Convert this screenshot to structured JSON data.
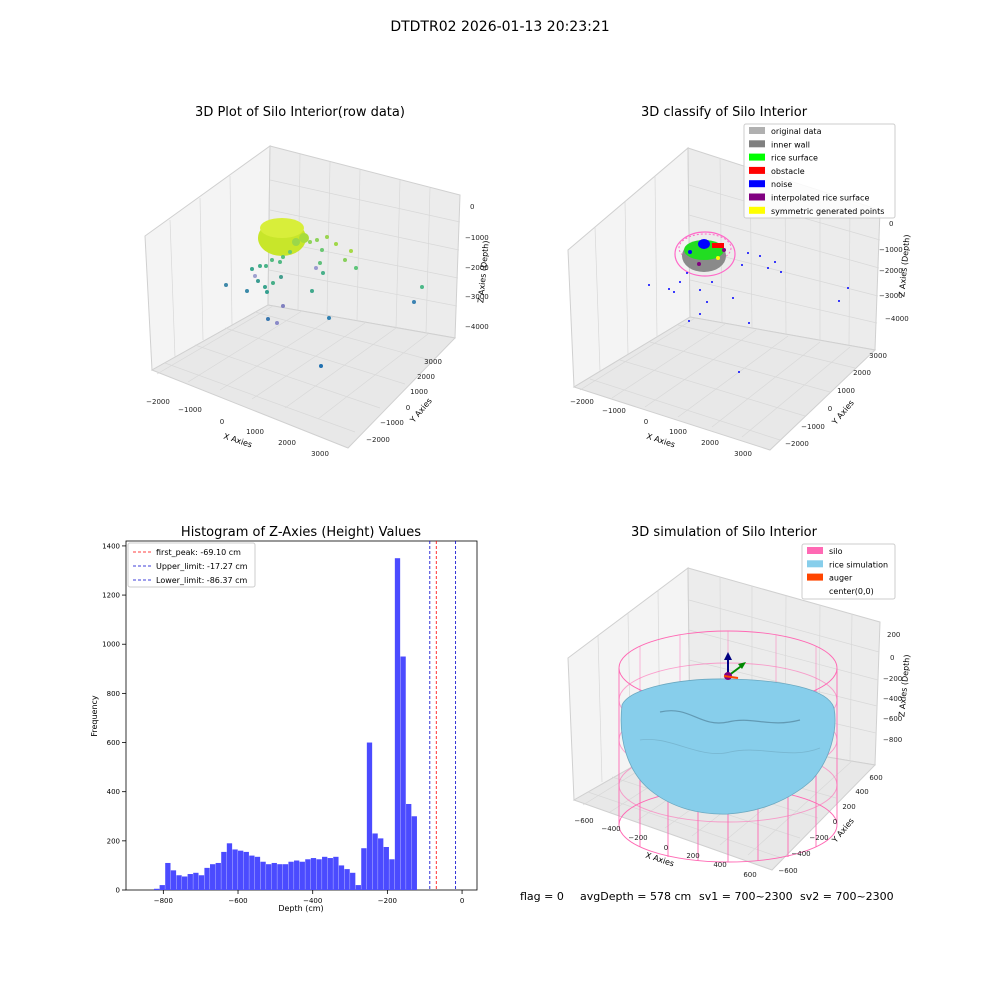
{
  "suptitle": "DTDTR02 2026-01-13 20:23:21",
  "status_line": {
    "flag": "flag = 0",
    "avg_depth": "avgDepth = 578 cm",
    "sv1": "sv1 = 700~2300",
    "sv2": "sv2 = 700~2300"
  },
  "colors": {
    "hist_bar": "#4b4bff",
    "first_peak_line": "#ff0000",
    "limit_lines": "#0000cc",
    "silo_wire": "#ff69b4",
    "rice_sim": "#87ceeb",
    "auger": "#ff4500",
    "pane": "#f2f2f2"
  },
  "chart_data": [
    {
      "type": "scatter3d",
      "title": "3D Plot of Silo Interior(row data)",
      "xlabel": "X Axies",
      "ylabel": "Y Axies",
      "zlabel": "Z Axies (Depth)",
      "x_ticks": [
        "−2000",
        "−1000",
        "0",
        "1000",
        "2000",
        "3000"
      ],
      "y_ticks": [
        "−2000",
        "−1000",
        "0",
        "1000",
        "2000",
        "3000"
      ],
      "z_ticks": [
        "0",
        "−1000",
        "−2000",
        "−3000",
        "−4000"
      ],
      "grid": true
    },
    {
      "type": "scatter3d",
      "title": "3D classify of Silo Interior",
      "xlabel": "X Axies",
      "ylabel": "Y Axies",
      "zlabel": "Z Axies (Depth)",
      "x_ticks": [
        "−2000",
        "−1000",
        "0",
        "1000",
        "2000",
        "3000"
      ],
      "y_ticks": [
        "−2000",
        "−1000",
        "0",
        "1000",
        "2000",
        "3000"
      ],
      "z_ticks": [
        "0",
        "−1000",
        "−2000",
        "−3000",
        "−4000"
      ],
      "legend_position": "top-right",
      "legend": [
        {
          "label": "original data",
          "color": "#b0b0b0"
        },
        {
          "label": "inner wall",
          "color": "#808080"
        },
        {
          "label": "rice surface",
          "color": "#00ff00"
        },
        {
          "label": "obstacle",
          "color": "#ff0000"
        },
        {
          "label": "noise",
          "color": "#0000ff"
        },
        {
          "label": "interpolated rice surface",
          "color": "#800080"
        },
        {
          "label": "symmetric generated points",
          "color": "#ffff00"
        }
      ],
      "grid": true
    },
    {
      "type": "bar",
      "title": "Histogram of Z-Axies (Height) Values",
      "xlabel": "Depth (cm)",
      "ylabel": "Frequency",
      "xlim": [
        -900,
        40
      ],
      "ylim": [
        0,
        1420
      ],
      "bin_width": 15,
      "x_ticks": [
        -800,
        -600,
        -400,
        -200,
        0
      ],
      "x_tick_labels": [
        "−800",
        "−600",
        "−400",
        "−200",
        "0"
      ],
      "y_ticks": [
        0,
        200,
        400,
        600,
        800,
        1000,
        1200,
        1400
      ],
      "bins": [
        {
          "start": -825,
          "value": 5
        },
        {
          "start": -810,
          "value": 20
        },
        {
          "start": -795,
          "value": 110
        },
        {
          "start": -780,
          "value": 80
        },
        {
          "start": -765,
          "value": 60
        },
        {
          "start": -750,
          "value": 55
        },
        {
          "start": -735,
          "value": 65
        },
        {
          "start": -720,
          "value": 70
        },
        {
          "start": -705,
          "value": 60
        },
        {
          "start": -690,
          "value": 90
        },
        {
          "start": -675,
          "value": 105
        },
        {
          "start": -660,
          "value": 110
        },
        {
          "start": -645,
          "value": 155
        },
        {
          "start": -630,
          "value": 190
        },
        {
          "start": -615,
          "value": 165
        },
        {
          "start": -600,
          "value": 160
        },
        {
          "start": -585,
          "value": 155
        },
        {
          "start": -570,
          "value": 140
        },
        {
          "start": -555,
          "value": 135
        },
        {
          "start": -540,
          "value": 115
        },
        {
          "start": -525,
          "value": 105
        },
        {
          "start": -510,
          "value": 110
        },
        {
          "start": -495,
          "value": 105
        },
        {
          "start": -480,
          "value": 105
        },
        {
          "start": -465,
          "value": 115
        },
        {
          "start": -450,
          "value": 120
        },
        {
          "start": -435,
          "value": 115
        },
        {
          "start": -420,
          "value": 125
        },
        {
          "start": -405,
          "value": 130
        },
        {
          "start": -390,
          "value": 125
        },
        {
          "start": -375,
          "value": 135
        },
        {
          "start": -360,
          "value": 130
        },
        {
          "start": -345,
          "value": 135
        },
        {
          "start": -330,
          "value": 100
        },
        {
          "start": -315,
          "value": 85
        },
        {
          "start": -300,
          "value": 70
        },
        {
          "start": -285,
          "value": 20
        },
        {
          "start": -270,
          "value": 170
        },
        {
          "start": -255,
          "value": 600
        },
        {
          "start": -240,
          "value": 230
        },
        {
          "start": -225,
          "value": 210
        },
        {
          "start": -210,
          "value": 175
        },
        {
          "start": -195,
          "value": 125
        },
        {
          "start": -180,
          "value": 1350
        },
        {
          "start": -165,
          "value": 950
        },
        {
          "start": -150,
          "value": 350
        },
        {
          "start": -135,
          "value": 300
        }
      ],
      "vlines": [
        {
          "label": "first_peak: -69.10 cm",
          "x": -69.1,
          "color": "#ff0000"
        },
        {
          "label": "Upper_limit: -17.27 cm",
          "x": -17.27,
          "color": "#0000cc"
        },
        {
          "label": "Lower_limit: -86.37 cm",
          "x": -86.37,
          "color": "#0000cc"
        }
      ],
      "legend_position": "top-left"
    },
    {
      "type": "surface3d",
      "title": "3D simulation of Silo Interior",
      "xlabel": "X Axies",
      "ylabel": "Y Axies",
      "zlabel": "Z Axies (Depth)",
      "x_ticks": [
        "−600",
        "−400",
        "−200",
        "0",
        "200",
        "400",
        "600"
      ],
      "y_ticks": [
        "−600",
        "−400",
        "−200",
        "0",
        "200",
        "400",
        "600"
      ],
      "z_ticks": [
        "200",
        "0",
        "−200",
        "−400",
        "−600",
        "−800"
      ],
      "legend_position": "top-right",
      "legend": [
        {
          "label": "silo",
          "color": "#ff69b4"
        },
        {
          "label": "rice simulation",
          "color": "#87ceeb"
        },
        {
          "label": "auger",
          "color": "#ff4500"
        },
        {
          "label": "center(0,0)",
          "color": ""
        }
      ],
      "grid": true
    }
  ]
}
